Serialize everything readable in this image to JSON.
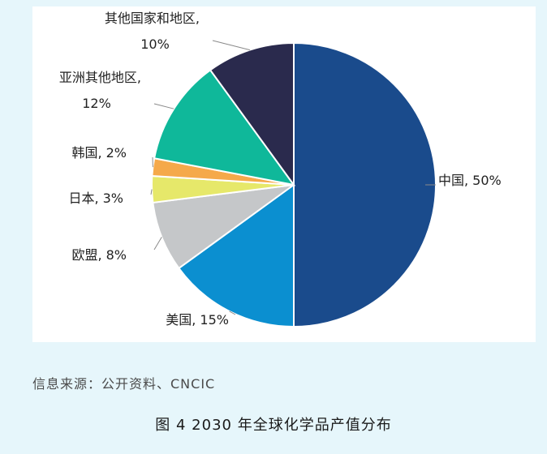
{
  "chart_data": {
    "type": "pie",
    "slices": [
      {
        "label": "中国",
        "value": 50,
        "display": "中国, 50%",
        "color": "#1a4b8c"
      },
      {
        "label": "美国",
        "value": 15,
        "display": "美国, 15%",
        "color": "#0b8fd0"
      },
      {
        "label": "欧盟",
        "value": 8,
        "display": "欧盟, 8%",
        "color": "#c5c7c9"
      },
      {
        "label": "日本",
        "value": 3,
        "display": "日本, 3%",
        "color": "#e6e86a"
      },
      {
        "label": "韩国",
        "value": 2,
        "display": "韩国, 2%",
        "color": "#f5a94a"
      },
      {
        "label": "亚洲其他地区",
        "value": 12,
        "display": [
          "亚洲其他地区,",
          "12%"
        ],
        "color": "#0fb89a"
      },
      {
        "label": "其他国家和地区",
        "value": 10,
        "display": [
          "其他国家和地区,",
          "10%"
        ],
        "color": "#2a2a4d"
      }
    ]
  },
  "source_note": "信息来源：公开资料、CNCIC",
  "caption": "图 4  2030 年全球化学品产值分布"
}
